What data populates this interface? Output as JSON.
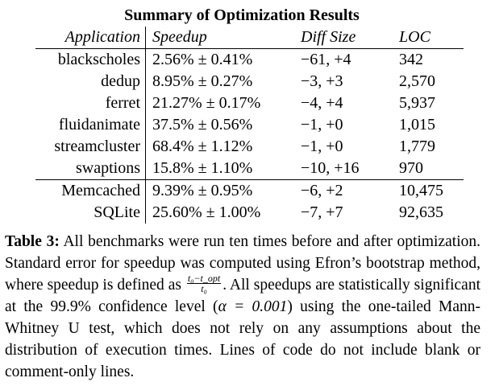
{
  "table": {
    "title": "Summary of Optimization Results",
    "headers": {
      "application": "Application",
      "speedup": "Speedup",
      "diff_size": "Diff Size",
      "loc": "LOC"
    },
    "group1": [
      {
        "application": "blackscholes",
        "speedup": "2.56% ± 0.41%",
        "diff_size": "−61, +4",
        "loc": "342"
      },
      {
        "application": "dedup",
        "speedup": "8.95% ± 0.27%",
        "diff_size": "−3, +3",
        "loc": "2,570"
      },
      {
        "application": "ferret",
        "speedup": "21.27% ± 0.17%",
        "diff_size": "−4, +4",
        "loc": "5,937"
      },
      {
        "application": "fluidanimate",
        "speedup": "37.5% ± 0.56%",
        "diff_size": "−1, +0",
        "loc": "1,015"
      },
      {
        "application": "streamcluster",
        "speedup": "68.4% ± 1.12%",
        "diff_size": "−1, +0",
        "loc": "1,779"
      },
      {
        "application": "swaptions",
        "speedup": "15.8% ± 1.10%",
        "diff_size": "−10, +16",
        "loc": "970"
      }
    ],
    "group2": [
      {
        "application": "Memcached",
        "speedup": "9.39% ± 0.95%",
        "diff_size": "−6, +2",
        "loc": "10,475"
      },
      {
        "application": "SQLite",
        "speedup": "25.60% ± 1.00%",
        "diff_size": "−7, +7",
        "loc": "92,635"
      }
    ]
  },
  "caption": {
    "label": "Table 3:",
    "text_part1": " All benchmarks were run ten times before and after optimization. Standard error for speedup was computed using Efron’s bootstrap method, where speedup is defined as ",
    "frac_numerator": "t₀−t_opt",
    "frac_denominator": "t₀",
    "text_part2": ". All speedups are statistically significant at the 99.9% confidence level (",
    "alpha_expr": "α = 0.001",
    "text_part3": ") using the one-tailed Mann-Whitney U test, which does not rely on any assumptions about the distribution of execution times. Lines of code do not include blank or comment-only lines."
  }
}
